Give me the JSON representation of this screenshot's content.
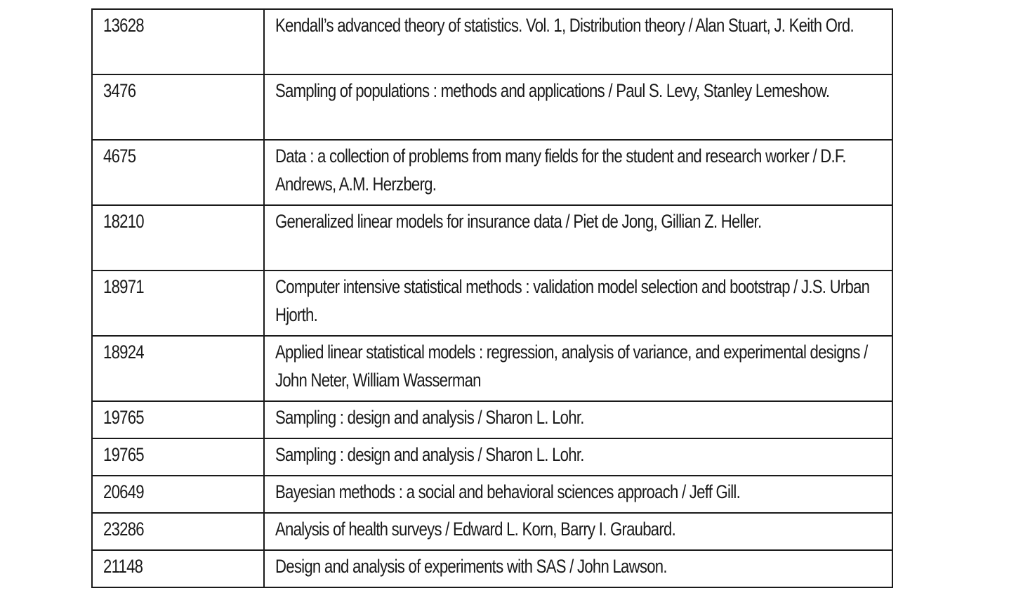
{
  "table": {
    "rows": [
      {
        "id": "13628",
        "title": "Kendall’s advanced theory of statistics. Vol. 1, Distribution theory / Alan Stuart, J. Keith Ord.",
        "lines": 2
      },
      {
        "id": "3476",
        "title": "Sampling of populations : methods and applications / Paul S. Levy, Stanley Lemeshow.",
        "lines": 2
      },
      {
        "id": "4675",
        "title": "Data : a collection of problems from many fields for the student and research worker / D.F. Andrews, A.M. Herzberg.",
        "lines": 2
      },
      {
        "id": "18210",
        "title": "Generalized linear models for insurance data / Piet de Jong, Gillian Z. Heller.",
        "lines": 2
      },
      {
        "id": "18971",
        "title": "Computer intensive statistical methods : validation model selection and bootstrap / J.S. Urban Hjorth.",
        "lines": 2
      },
      {
        "id": "18924",
        "title": "Applied linear statistical models : regression, analysis of variance, and experimental designs / John Neter, William Wasserman",
        "lines": 2
      },
      {
        "id": "19765",
        "title": "Sampling : design and analysis / Sharon L. Lohr.",
        "lines": 1
      },
      {
        "id": "19765",
        "title": "Sampling : design and analysis / Sharon L. Lohr.",
        "lines": 1
      },
      {
        "id": "20649",
        "title": "Bayesian methods : a social and behavioral sciences approach / Jeff Gill.",
        "lines": 1
      },
      {
        "id": "23286",
        "title": "Analysis of health surveys / Edward L. Korn, Barry I. Graubard.",
        "lines": 1
      },
      {
        "id": "21148",
        "title": "Design and analysis of experiments with SAS / John Lawson.",
        "lines": 1
      }
    ]
  }
}
